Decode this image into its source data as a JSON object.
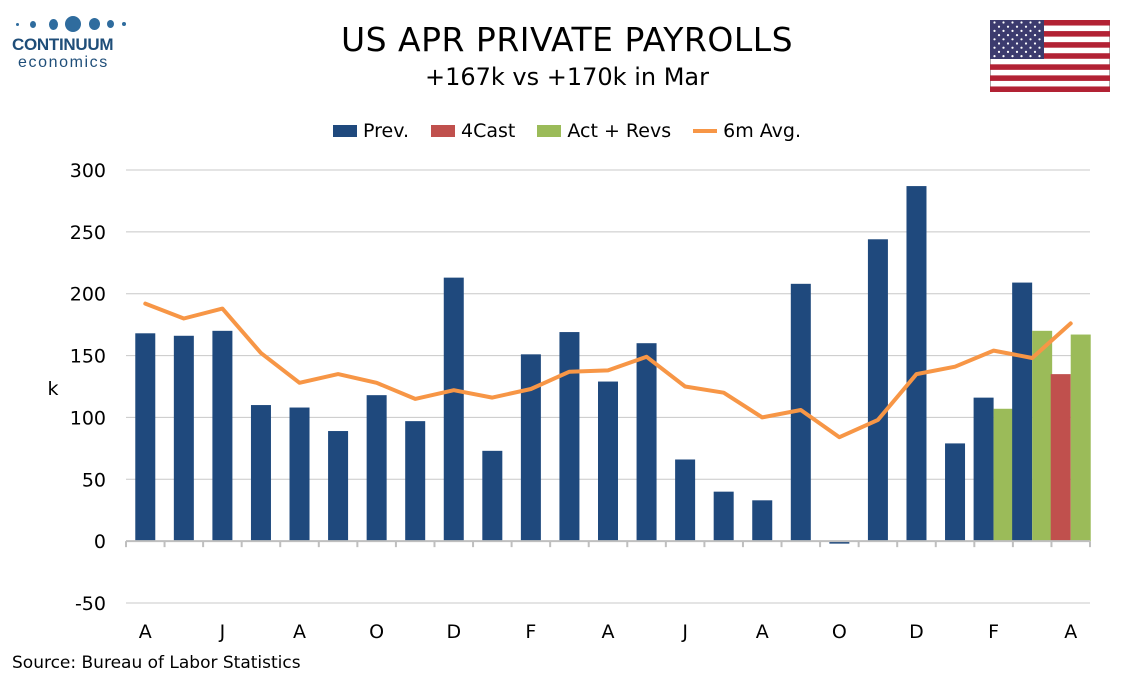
{
  "logo": {
    "word": "CONTINUUM",
    "sub": "economics"
  },
  "header": {
    "title": "US APR PRIVATE PAYROLLS",
    "subtitle": "+167k vs +170k in Mar"
  },
  "source": "Source: Bureau of Labor Statistics",
  "colors": {
    "prev": "#1f497d",
    "forecast": "#c0504d",
    "actual": "#9bbb59",
    "avg": "#f79646",
    "grid": "#c8c8c8"
  },
  "chart_data": {
    "type": "bar",
    "title": "US APR PRIVATE PAYROLLS",
    "subtitle": "+167k vs +170k in Mar",
    "ylabel": "k",
    "xlabel": "",
    "ylim": [
      -50,
      300
    ],
    "yticks": [
      -50,
      0,
      50,
      100,
      150,
      200,
      250,
      300
    ],
    "grid": true,
    "legend_position": "top",
    "xtick_labels": [
      "A",
      "J",
      "A",
      "O",
      "D",
      "F",
      "A",
      "J",
      "A",
      "O",
      "D",
      "F",
      "A"
    ],
    "categories": 25,
    "series": [
      {
        "name": "Prev.",
        "kind": "bar",
        "values": [
          168,
          166,
          170,
          110,
          108,
          89,
          118,
          97,
          213,
          73,
          151,
          169,
          129,
          160,
          66,
          40,
          33,
          208,
          -2,
          244,
          287,
          79,
          116,
          209,
          null
        ]
      },
      {
        "name": "4Cast",
        "kind": "bar",
        "values": [
          null,
          null,
          null,
          null,
          null,
          null,
          null,
          null,
          null,
          null,
          null,
          null,
          null,
          null,
          null,
          null,
          null,
          null,
          null,
          null,
          null,
          null,
          null,
          null,
          135
        ]
      },
      {
        "name": "Act + Revs",
        "kind": "bar",
        "values": [
          null,
          null,
          null,
          null,
          null,
          null,
          null,
          null,
          null,
          null,
          null,
          null,
          null,
          null,
          null,
          null,
          null,
          null,
          null,
          null,
          null,
          null,
          107,
          170,
          167
        ]
      },
      {
        "name": "6m Avg.",
        "kind": "line",
        "values": [
          192,
          180,
          188,
          152,
          128,
          135,
          128,
          115,
          122,
          116,
          123,
          137,
          138,
          149,
          125,
          120,
          100,
          106,
          84,
          98,
          135,
          141,
          154,
          148,
          176
        ]
      }
    ]
  }
}
